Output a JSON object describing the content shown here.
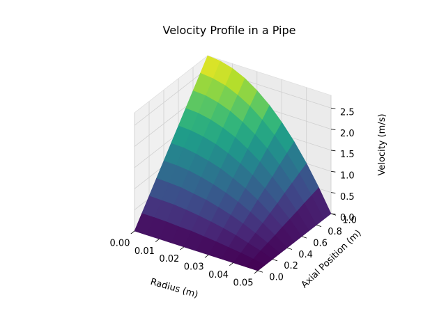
{
  "chart_data": {
    "type": "surface3d",
    "title": "Velocity Profile in a Pipe",
    "xlabel": "Radius (m)",
    "ylabel": "Axial Position (m)",
    "zlabel": "Velocity (m/s)",
    "x_ticks": [
      "0.00",
      "0.01",
      "0.02",
      "0.03",
      "0.04",
      "0.05"
    ],
    "y_ticks": [
      "0.0",
      "0.2",
      "0.4",
      "0.6",
      "0.8",
      "1.0"
    ],
    "z_ticks": [
      "0.0",
      "0.5",
      "1.0",
      "1.5",
      "2.0",
      "2.5"
    ],
    "xlim": [
      0,
      0.05
    ],
    "ylim": [
      0,
      1.0
    ],
    "zlim": [
      0,
      2.8
    ],
    "colormap": "viridis",
    "grid": true,
    "surface": {
      "radius": [
        0,
        0.005,
        0.01,
        0.015,
        0.02,
        0.025,
        0.03,
        0.035,
        0.04,
        0.045,
        0.05
      ],
      "axial_position": [
        0,
        0.1,
        0.2,
        0.3,
        0.4,
        0.5,
        0.6,
        0.7,
        0.8,
        0.9,
        1.0
      ],
      "velocity": [
        [
          0.0,
          0.28,
          0.56,
          0.84,
          1.12,
          1.4,
          1.68,
          1.96,
          2.24,
          2.52,
          2.8
        ],
        [
          0.0,
          0.28,
          0.55,
          0.83,
          1.11,
          1.39,
          1.66,
          1.94,
          2.22,
          2.49,
          2.77
        ],
        [
          0.0,
          0.27,
          0.54,
          0.81,
          1.08,
          1.34,
          1.61,
          1.88,
          2.15,
          2.42,
          2.69
        ],
        [
          0.0,
          0.25,
          0.51,
          0.76,
          1.02,
          1.27,
          1.53,
          1.78,
          2.04,
          2.29,
          2.55
        ],
        [
          0.0,
          0.24,
          0.47,
          0.71,
          0.94,
          1.18,
          1.41,
          1.65,
          1.88,
          2.12,
          2.35
        ],
        [
          0.0,
          0.21,
          0.42,
          0.63,
          0.84,
          1.05,
          1.26,
          1.47,
          1.68,
          1.89,
          2.1
        ],
        [
          0.0,
          0.18,
          0.36,
          0.54,
          0.72,
          0.9,
          1.08,
          1.26,
          1.44,
          1.62,
          1.79
        ],
        [
          0.0,
          0.14,
          0.29,
          0.43,
          0.57,
          0.72,
          0.86,
          1.0,
          1.15,
          1.29,
          1.43
        ],
        [
          0.0,
          0.1,
          0.2,
          0.3,
          0.4,
          0.5,
          0.6,
          0.71,
          0.81,
          0.91,
          1.01
        ],
        [
          0.0,
          0.05,
          0.11,
          0.16,
          0.21,
          0.27,
          0.32,
          0.37,
          0.43,
          0.48,
          0.53
        ],
        [
          0.0,
          0.0,
          0.0,
          0.0,
          0.0,
          0.0,
          0.0,
          0.0,
          0.0,
          0.0,
          0.0
        ]
      ]
    }
  }
}
